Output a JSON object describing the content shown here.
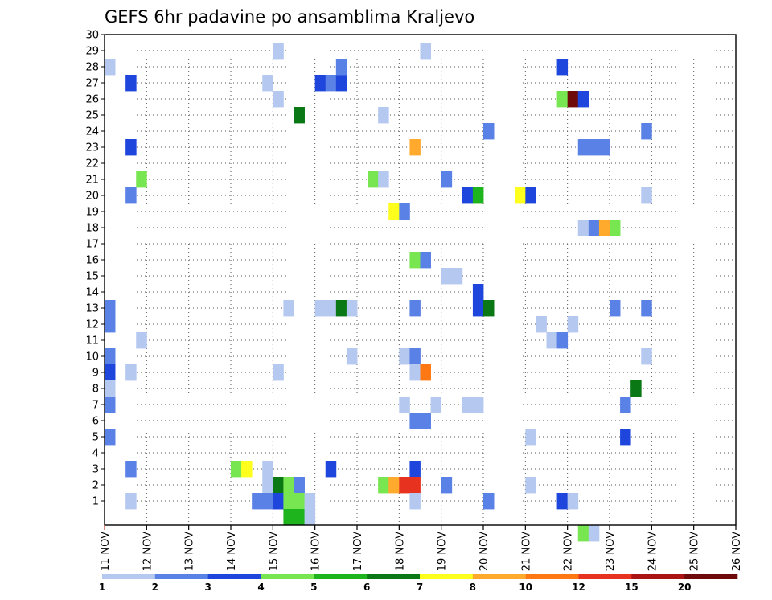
{
  "chart_data": {
    "type": "heatmap",
    "title": "GEFS 6hr padavine po ansamblima Kraljevo",
    "xlabel": "",
    "ylabel": "",
    "x_tick_labels": [
      "11 NOV",
      "12 NOV",
      "13 NOV",
      "14 NOV",
      "15 NOV",
      "16 NOV",
      "17 NOV",
      "18 NOV",
      "19 NOV",
      "20 NOV",
      "21 NOV",
      "22 NOV",
      "23 NOV",
      "24 NOV",
      "25 NOV",
      "26 NOV"
    ],
    "xlim": [
      0,
      60
    ],
    "y_tick_labels": [
      "1",
      "2",
      "3",
      "4",
      "5",
      "6",
      "7",
      "8",
      "9",
      "10",
      "11",
      "12",
      "13",
      "14",
      "15",
      "16",
      "17",
      "18",
      "19",
      "20",
      "21",
      "22",
      "23",
      "24",
      "25",
      "26",
      "27",
      "28",
      "29",
      "30"
    ],
    "ylim": [
      0,
      30
    ],
    "grid": true,
    "x_unit": "6-hour step from 11 NOV",
    "y_unit": "ensemble member",
    "color_scale": {
      "boundary_labels": [
        "1",
        "2",
        "3",
        "4",
        "5",
        "6",
        "7",
        "8",
        "10",
        "12",
        "15",
        "20"
      ],
      "colors": [
        "#b4c8f0",
        "#5a82e6",
        "#1e46dc",
        "#78e650",
        "#1eb41e",
        "#0a7814",
        "#ffff1e",
        "#ffaa2d",
        "#ff7814",
        "#e6321e",
        "#aa1414",
        "#6e0a0a"
      ]
    },
    "cells": [
      [
        0,
        13,
        1
      ],
      [
        0,
        12,
        1
      ],
      [
        0,
        10,
        1
      ],
      [
        0,
        9,
        2
      ],
      [
        0,
        8,
        0
      ],
      [
        0,
        7,
        1
      ],
      [
        0,
        5,
        1
      ],
      [
        0,
        28,
        0
      ],
      [
        2,
        27,
        2
      ],
      [
        2,
        23,
        2
      ],
      [
        2,
        20,
        1
      ],
      [
        2,
        9,
        0
      ],
      [
        2,
        3,
        1
      ],
      [
        2,
        1,
        0
      ],
      [
        3,
        21,
        3
      ],
      [
        3,
        11,
        0
      ],
      [
        12,
        3,
        3
      ],
      [
        13,
        3,
        6
      ],
      [
        14,
        1,
        1
      ],
      [
        15,
        3,
        0
      ],
      [
        15,
        2,
        0
      ],
      [
        15,
        1,
        1
      ],
      [
        15,
        27,
        0
      ],
      [
        16,
        26,
        0
      ],
      [
        16,
        29,
        0
      ],
      [
        16,
        9,
        0
      ],
      [
        16,
        1,
        1
      ],
      [
        16,
        2,
        5
      ],
      [
        16,
        1,
        2
      ],
      [
        17,
        13,
        0
      ],
      [
        17,
        2,
        3
      ],
      [
        17,
        1,
        3
      ],
      [
        17,
        0,
        4
      ],
      [
        18,
        25,
        5
      ],
      [
        18,
        2,
        1
      ],
      [
        18,
        1,
        3
      ],
      [
        18,
        0,
        4
      ],
      [
        19,
        1,
        0
      ],
      [
        19,
        0,
        0
      ],
      [
        20,
        13,
        0
      ],
      [
        20,
        27,
        2
      ],
      [
        21,
        13,
        0
      ],
      [
        21,
        27,
        1
      ],
      [
        21,
        3,
        2
      ],
      [
        22,
        13,
        5
      ],
      [
        22,
        27,
        2
      ],
      [
        22,
        28,
        1
      ],
      [
        23,
        13,
        0
      ],
      [
        23,
        10,
        0
      ],
      [
        25,
        21,
        3
      ],
      [
        26,
        21,
        0
      ],
      [
        26,
        25,
        0
      ],
      [
        26,
        2,
        3
      ],
      [
        27,
        19,
        6
      ],
      [
        27,
        2,
        7
      ],
      [
        28,
        19,
        1
      ],
      [
        28,
        10,
        0
      ],
      [
        28,
        7,
        0
      ],
      [
        28,
        2,
        9
      ],
      [
        29,
        23,
        7
      ],
      [
        29,
        16,
        3
      ],
      [
        29,
        13,
        1
      ],
      [
        29,
        10,
        1
      ],
      [
        29,
        9,
        0
      ],
      [
        29,
        6,
        1
      ],
      [
        29,
        3,
        2
      ],
      [
        29,
        2,
        9
      ],
      [
        29,
        1,
        0
      ],
      [
        30,
        16,
        1
      ],
      [
        30,
        6,
        1
      ],
      [
        30,
        9,
        8
      ],
      [
        30,
        29,
        0
      ],
      [
        31,
        7,
        0
      ],
      [
        32,
        15,
        0
      ],
      [
        32,
        21,
        1
      ],
      [
        32,
        2,
        1
      ],
      [
        33,
        15,
        0
      ],
      [
        34,
        20,
        2
      ],
      [
        34,
        7,
        0
      ],
      [
        35,
        20,
        4
      ],
      [
        35,
        14,
        2
      ],
      [
        35,
        13,
        2
      ],
      [
        35,
        7,
        0
      ],
      [
        36,
        24,
        1
      ],
      [
        36,
        13,
        5
      ],
      [
        36,
        1,
        1
      ],
      [
        39,
        20,
        6
      ],
      [
        40,
        20,
        2
      ],
      [
        40,
        5,
        0
      ],
      [
        40,
        2,
        0
      ],
      [
        41,
        12,
        0
      ],
      [
        42,
        11,
        0
      ],
      [
        43,
        11,
        1
      ],
      [
        43,
        28,
        2
      ],
      [
        43,
        26,
        3
      ],
      [
        43,
        1,
        2
      ],
      [
        44,
        26,
        11
      ],
      [
        44,
        12,
        0
      ],
      [
        44,
        1,
        0
      ],
      [
        45,
        26,
        2
      ],
      [
        45,
        23,
        1
      ],
      [
        45,
        18,
        0
      ],
      [
        45,
        -1,
        3
      ],
      [
        46,
        18,
        1
      ],
      [
        46,
        23,
        1
      ],
      [
        46,
        -1,
        0
      ],
      [
        47,
        18,
        7
      ],
      [
        47,
        23,
        1
      ],
      [
        48,
        18,
        3
      ],
      [
        48,
        13,
        1
      ],
      [
        49,
        5,
        2
      ],
      [
        49,
        7,
        1
      ],
      [
        50,
        8,
        5
      ],
      [
        51,
        24,
        1
      ],
      [
        51,
        20,
        0
      ],
      [
        51,
        13,
        1
      ],
      [
        51,
        10,
        0
      ]
    ]
  }
}
